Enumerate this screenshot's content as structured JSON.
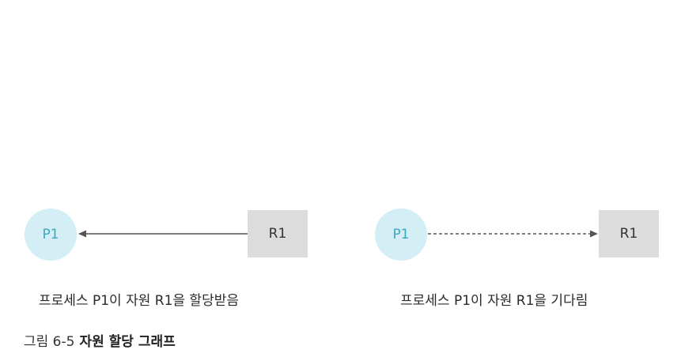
{
  "colors": {
    "process_fill": "#d3eef4",
    "process_text": "#3fa7bf",
    "resource_fill": "#dcdcdc",
    "resource_text": "#333333",
    "edge_color": "#555555"
  },
  "diagrams": [
    {
      "process_label": "P1",
      "resource_label": "R1",
      "edge_style": "solid",
      "edge_direction": "resource-to-process",
      "caption": "프로세스 P1이 자원 R1을 할당받음"
    },
    {
      "process_label": "P1",
      "resource_label": "R1",
      "edge_style": "dashed",
      "edge_direction": "process-to-resource",
      "caption": "프로세스 P1이 자원 R1을 기다림"
    }
  ],
  "figure": {
    "number": "그림 6-5",
    "title": "자원 할당 그래프"
  }
}
